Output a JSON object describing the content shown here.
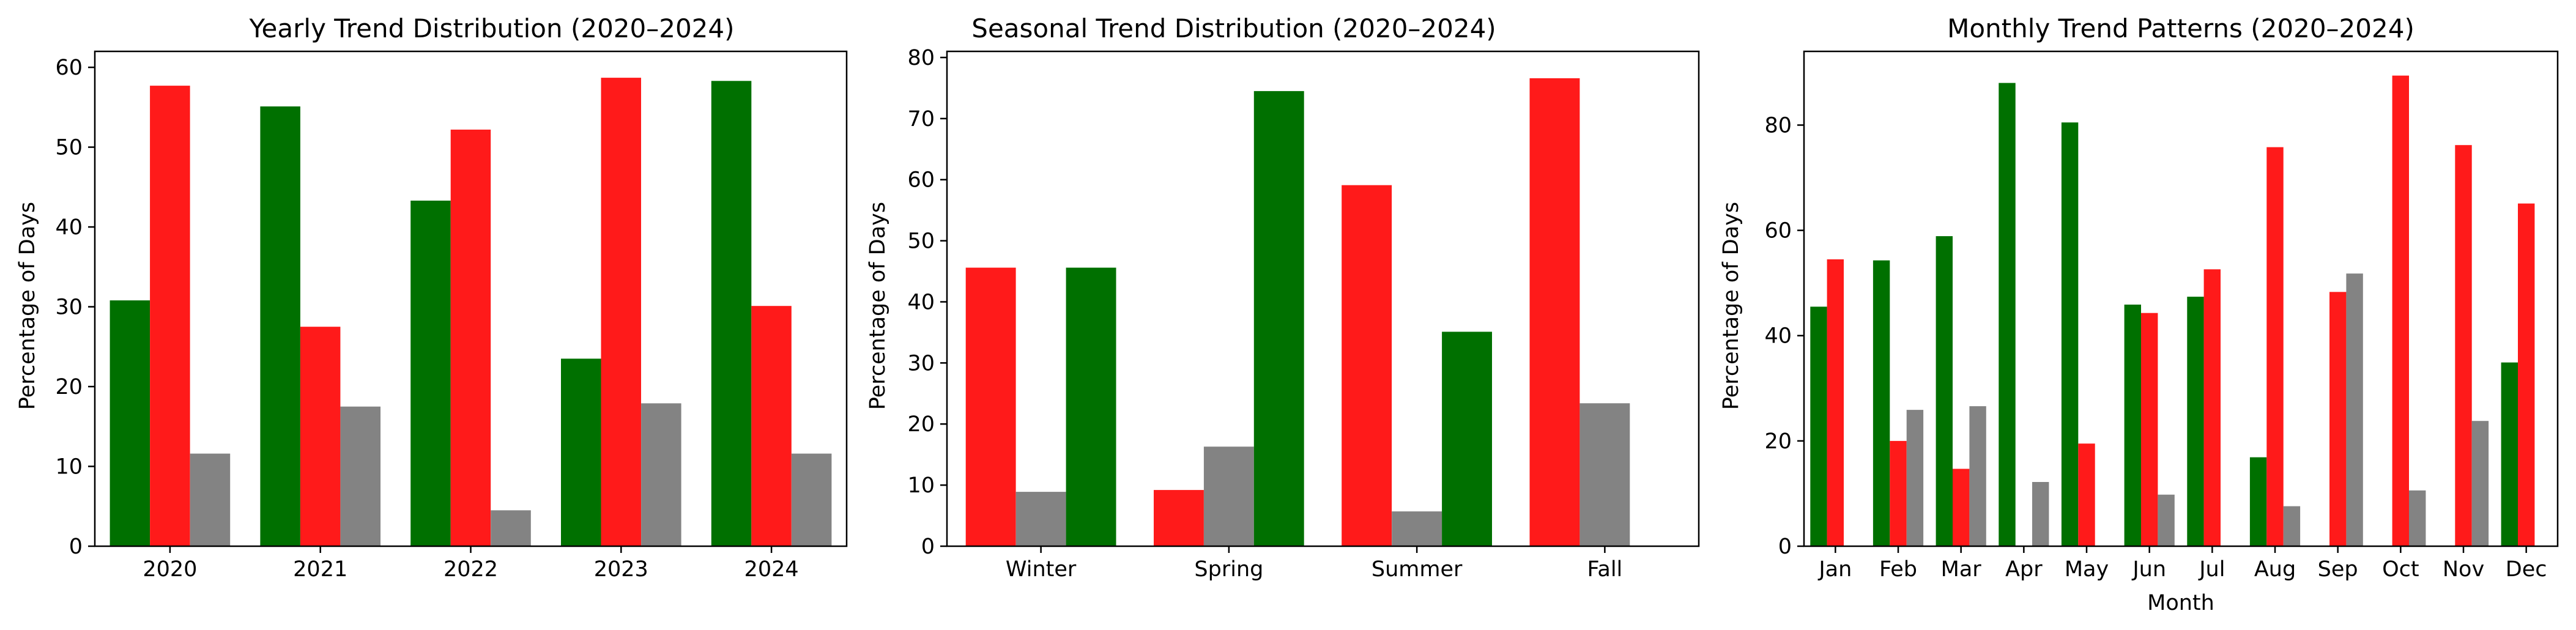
{
  "chart_data": [
    {
      "type": "bar",
      "title": "Yearly Trend Distribution (2020–2024)",
      "xlabel": "",
      "ylabel": "Percentage of Days",
      "ylim": [
        0,
        62
      ],
      "yticks": [
        0,
        10,
        20,
        30,
        40,
        50,
        60
      ],
      "categories": [
        "2020",
        "2021",
        "2022",
        "2023",
        "2024"
      ],
      "grid": false,
      "legend": "none",
      "series": [
        {
          "color": "#007000",
          "values": [
            30.8,
            55.1,
            43.3,
            23.5,
            58.3
          ]
        },
        {
          "color": "#ff1a1a",
          "values": [
            57.7,
            27.5,
            52.2,
            58.7,
            30.1
          ]
        },
        {
          "color": "#838383",
          "values": [
            11.6,
            17.5,
            4.5,
            17.9,
            11.6
          ]
        }
      ]
    },
    {
      "type": "bar",
      "title": "Seasonal Trend Distribution (2020–2024)",
      "xlabel": "",
      "ylabel": "Percentage of Days",
      "ylim": [
        0,
        81
      ],
      "yticks": [
        0,
        10,
        20,
        30,
        40,
        50,
        60,
        70,
        80
      ],
      "categories": [
        "Winter",
        "Spring",
        "Summer",
        "Fall"
      ],
      "grid": false,
      "legend": "none",
      "series": [
        {
          "color": "#ff1a1a",
          "values": [
            45.6,
            9.2,
            59.1,
            76.6
          ]
        },
        {
          "color": "#838383",
          "values": [
            8.9,
            16.3,
            5.7,
            23.4
          ]
        },
        {
          "color": "#007000",
          "values": [
            45.6,
            74.5,
            35.1,
            null
          ]
        }
      ]
    },
    {
      "type": "bar",
      "title": "Monthly Trend Patterns (2020–2024)",
      "xlabel": "Month",
      "ylabel": "Percentage of Days",
      "ylim": [
        0,
        94
      ],
      "yticks": [
        0,
        20,
        40,
        60,
        80
      ],
      "categories": [
        "Jan",
        "Feb",
        "Mar",
        "Apr",
        "May",
        "Jun",
        "Jul",
        "Aug",
        "Sep",
        "Oct",
        "Nov",
        "Dec"
      ],
      "grid": false,
      "legend": "none",
      "series": [
        {
          "color": "#007000",
          "values": [
            45.5,
            54.3,
            58.9,
            88.0,
            80.5,
            45.9,
            47.4,
            16.9,
            0,
            0,
            0,
            34.9
          ]
        },
        {
          "color": "#ff1a1a",
          "values": [
            54.5,
            20.0,
            14.7,
            0,
            19.5,
            44.3,
            52.6,
            75.8,
            48.3,
            89.4,
            76.2,
            65.1
          ]
        },
        {
          "color": "#838383",
          "values": [
            0,
            25.9,
            26.6,
            12.2,
            0,
            9.8,
            0,
            7.6,
            51.8,
            10.6,
            23.8,
            0
          ]
        }
      ]
    }
  ]
}
